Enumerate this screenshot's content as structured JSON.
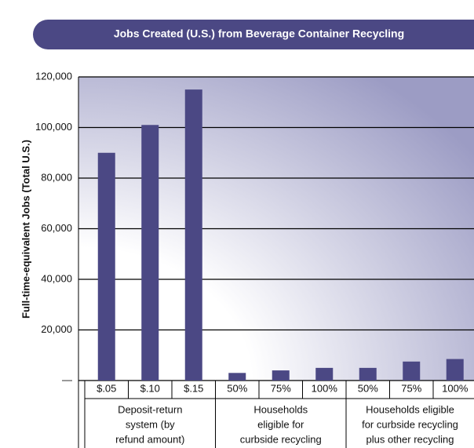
{
  "chart_data": {
    "type": "bar",
    "title": "Jobs Created (U.S.) from Beverage Container Recycling",
    "ylabel": "Full-time-equivalent Jobs (Total U.S.)",
    "color": "#4b4884",
    "grid": true,
    "ylim": [
      0,
      120000
    ],
    "yticks": [
      {
        "value": 0,
        "label": "—"
      },
      {
        "value": 20000,
        "label": "20,000"
      },
      {
        "value": 40000,
        "label": "40,000"
      },
      {
        "value": 60000,
        "label": "60,000"
      },
      {
        "value": 80000,
        "label": "80,000"
      },
      {
        "value": 100000,
        "label": "100,000"
      },
      {
        "value": 120000,
        "label": "120,000"
      }
    ],
    "groups": [
      {
        "label": [
          "Deposit-return",
          "system (by",
          "refund amount)"
        ],
        "categories": [
          "$.05",
          "$.10",
          "$.15"
        ],
        "values": [
          90000,
          101000,
          115000
        ]
      },
      {
        "label": [
          "Households",
          "eligible for",
          "curbside recycling"
        ],
        "categories": [
          "50%",
          "75%",
          "100%"
        ],
        "values": [
          3000,
          4000,
          5000
        ]
      },
      {
        "label": [
          "Households eligible",
          "for curbside recycling",
          "plus other recycling"
        ],
        "categories": [
          "50%",
          "75%",
          "100%"
        ],
        "values": [
          5000,
          7500,
          8500
        ]
      }
    ]
  }
}
